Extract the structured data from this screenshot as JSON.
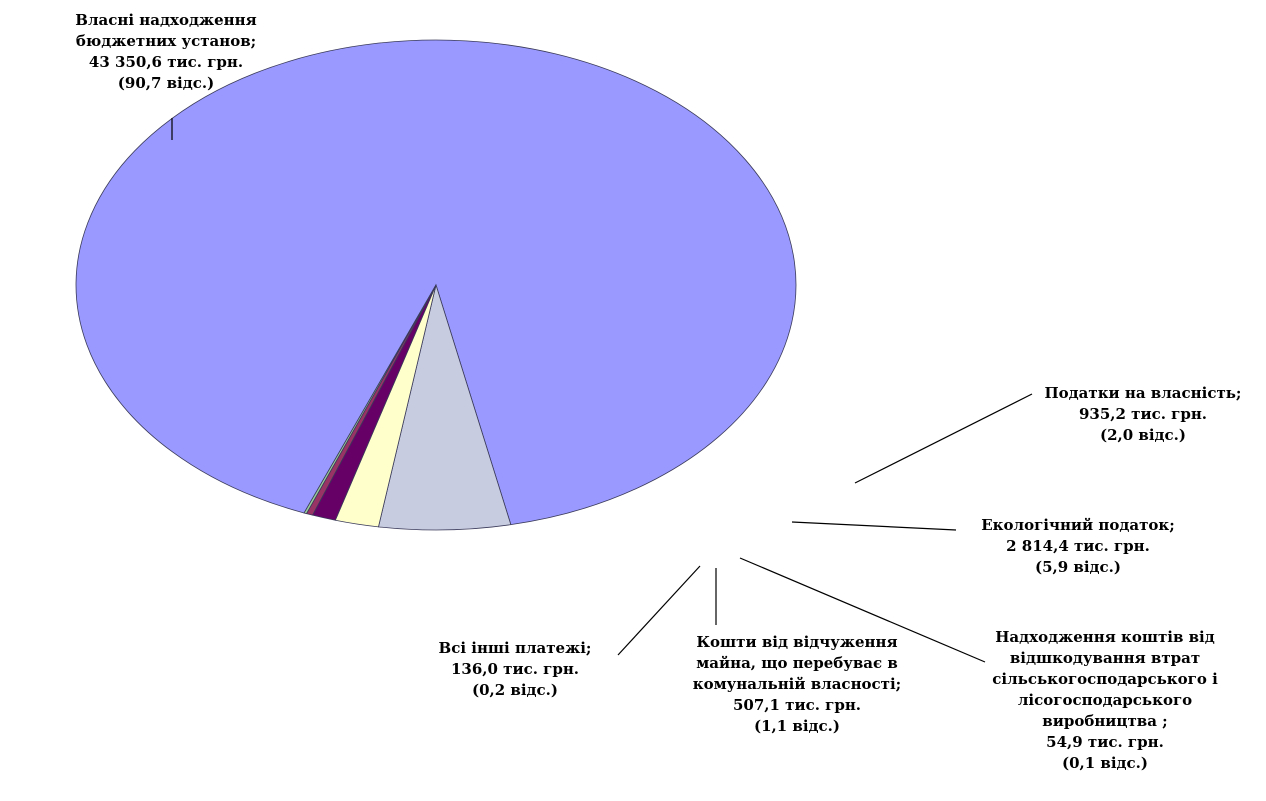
{
  "chart_data": {
    "type": "pie",
    "title": "",
    "unit": "тис. грн.",
    "slices": [
      {
        "name": "Власні надходження бюджетних установ",
        "value": 43350.6,
        "percent": 90.7,
        "color": "#9999ff",
        "label_lines": [
          "Власні надходження",
          "бюджетних установ;",
          "43 350,6 тис. грн.",
          "(90,7 відс.)"
        ]
      },
      {
        "name": "Екологічний податок",
        "value": 2814.4,
        "percent": 5.9,
        "color": "#c8cce0",
        "label_lines": [
          "Екологічний податок;",
          "2 814,4 тис. грн.",
          "(5,9 відс.)"
        ]
      },
      {
        "name": "Податки на власність",
        "value": 935.2,
        "percent": 2.0,
        "color": "#ffffcc",
        "label_lines": [
          "Податки на власність;",
          "935,2 тис. грн.",
          "(2,0 відс.)"
        ]
      },
      {
        "name": "Кошти від відчуження майна, що перебуває в комунальній власності",
        "value": 507.1,
        "percent": 1.1,
        "color": "#660066",
        "label_lines": [
          "Кошти від відчуження",
          "майна, що перебуває в",
          "комунальній власності;",
          "507,1 тис. грн.",
          "(1,1 відс.)"
        ]
      },
      {
        "name": "Всі інші платежі",
        "value": 136.0,
        "percent": 0.2,
        "color": "#993366",
        "label_lines": [
          "Всі інші платежі;",
          "136,0 тис. грн.",
          "(0,2 відс.)"
        ]
      },
      {
        "name": "Надходження коштів від відшкодування втрат сільськогосподарського і лісогосподарського виробництва",
        "value": 54.9,
        "percent": 0.1,
        "color": "#99cc99",
        "label_lines": [
          "Надходження коштів від",
          "відшкодування втрат",
          "сільськогосподарського і",
          "лісогосподарського",
          "виробництва  ;",
          "54,9 тис. грн.",
          "(0,1 відс.)"
        ]
      }
    ]
  }
}
